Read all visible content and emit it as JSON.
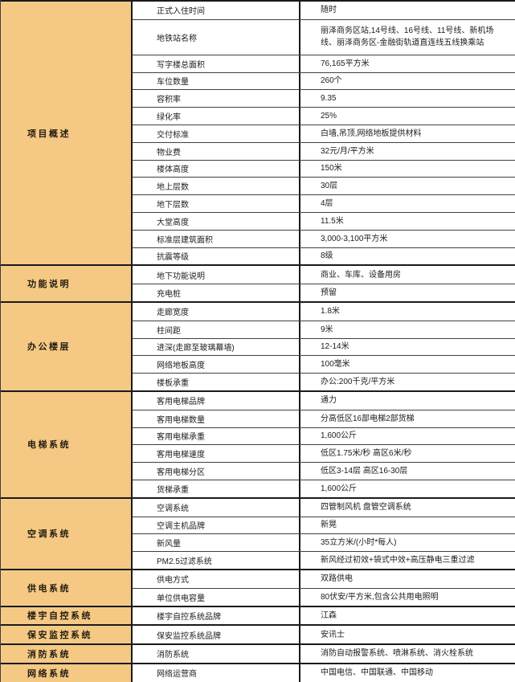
{
  "table": {
    "colors": {
      "category_bg": "#f5c984",
      "border_dark": "#1a1a1a",
      "border_light": "#404040",
      "text": "#1c1c1c"
    },
    "sections": [
      {
        "category": "项目概述",
        "rows": [
          {
            "label": "正式入住时间",
            "value": "随时"
          },
          {
            "label": "地铁站名称",
            "value": "丽泽商务区站,14号线、16号线、11号线、新机场线、丽泽商务区-金融街轨道直连线五线换乘站",
            "tall": true
          },
          {
            "label": "写字楼总面积",
            "value": "76,165平方米"
          },
          {
            "label": "车位数量",
            "value": "260个"
          },
          {
            "label": "容积率",
            "value": "9.35"
          },
          {
            "label": "绿化率",
            "value": "25%"
          },
          {
            "label": "交付标准",
            "value": "白墙,吊顶,网络地板提供材料"
          },
          {
            "label": "物业费",
            "value": "32元/月/平方米"
          },
          {
            "label": "楼体高度",
            "value": "150米"
          },
          {
            "label": "地上层数",
            "value": "30层"
          },
          {
            "label": "地下层数",
            "value": "4层"
          },
          {
            "label": "大堂高度",
            "value": "11.5米"
          },
          {
            "label": "标准层建筑面积",
            "value": "3,000-3,100平方米"
          },
          {
            "label": "抗震等级",
            "value": "8级"
          }
        ]
      },
      {
        "category": "功能说明",
        "rows": [
          {
            "label": "地下功能说明",
            "value": "商业、车库、设备用房"
          },
          {
            "label": "充电桩",
            "value": "预留"
          }
        ]
      },
      {
        "category": "办公楼层",
        "rows": [
          {
            "label": "走廊宽度",
            "value": "1.8米"
          },
          {
            "label": "柱间距",
            "value": "9米"
          },
          {
            "label": "进深(走廊至玻璃幕墙)",
            "value": "12-14米"
          },
          {
            "label": "网络地板高度",
            "value": "100毫米"
          },
          {
            "label": "楼板承重",
            "value": "办公:200千克/平方米"
          }
        ]
      },
      {
        "category": "电梯系统",
        "rows": [
          {
            "label": "客用电梯品牌",
            "value": "通力"
          },
          {
            "label": "客用电梯数量",
            "value": "分高低区16部电梯2部货梯"
          },
          {
            "label": "客用电梯承重",
            "value": "1,600公斤"
          },
          {
            "label": "客用电梯速度",
            "value": "低区1.75米/秒 高区6米/秒"
          },
          {
            "label": "客用电梯分区",
            "value": "低区3-14层  高区16-30层"
          },
          {
            "label": "货梯承重",
            "value": "1,600公斤"
          }
        ]
      },
      {
        "category": "空调系统",
        "rows": [
          {
            "label": "空调系统",
            "value": "四管制风机 盘管空调系统"
          },
          {
            "label": "空调主机品牌",
            "value": "新晃"
          },
          {
            "label": "新风量",
            "value": "35立方米/(小时*每人)"
          },
          {
            "label": "PM2.5过滤系统",
            "value": "新风经过初效+袋式中效+高压静电三重过滤"
          }
        ]
      },
      {
        "category": "供电系统",
        "rows": [
          {
            "label": "供电方式",
            "value": "双路供电"
          },
          {
            "label": "单位供电容量",
            "value": "80伏安/平方米,包含公共用电照明"
          }
        ]
      },
      {
        "category": "楼宇自控系统",
        "rows": [
          {
            "label": "楼宇自控系统品牌",
            "value": "江森"
          }
        ]
      },
      {
        "category": "保安监控系统",
        "rows": [
          {
            "label": "保安监控系统品牌",
            "value": "安讯士"
          }
        ]
      },
      {
        "category": "消防系统",
        "rows": [
          {
            "label": "消防系统",
            "value": "消防自动报警系统、喷淋系统、消火栓系统"
          }
        ]
      },
      {
        "category": "网络系统",
        "rows": [
          {
            "label": "网络运营商",
            "value": "中国电信、中国联通、中国移动"
          }
        ]
      }
    ]
  }
}
